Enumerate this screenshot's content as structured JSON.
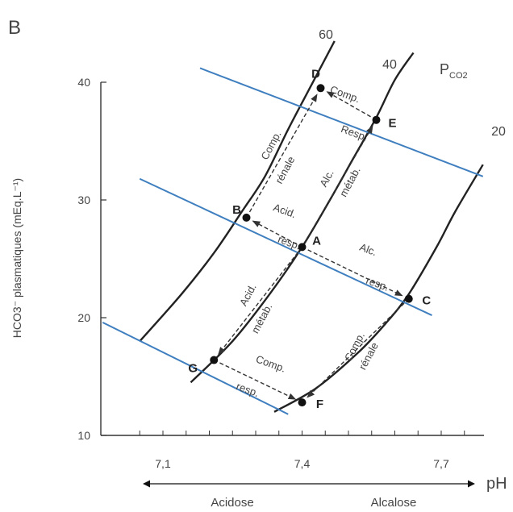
{
  "panel_label": "B",
  "chart_data": {
    "type": "diagram",
    "title": "",
    "ylabel": "HCO3⁻ plasmatiques (mEq.L⁻¹)",
    "xlabel": "pH",
    "x_ticks": [
      "7,1",
      "7,4",
      "7,7"
    ],
    "y_ticks": [
      "10",
      "20",
      "30",
      "40"
    ],
    "xlim": [
      7.0,
      7.8
    ],
    "ylim": [
      10,
      42
    ],
    "pco2_label": "P",
    "pco2_sub": "CO2",
    "isobars": [
      {
        "label": "60",
        "points": [
          [
            7.05,
            18
          ],
          [
            7.14,
            22
          ],
          [
            7.21,
            25.5
          ],
          [
            7.27,
            29
          ],
          [
            7.32,
            32
          ],
          [
            7.37,
            36
          ],
          [
            7.43,
            40.5
          ],
          [
            7.47,
            43.5
          ]
        ]
      },
      {
        "label": "40",
        "points": [
          [
            7.16,
            14.5
          ],
          [
            7.25,
            18
          ],
          [
            7.33,
            22
          ],
          [
            7.4,
            26
          ],
          [
            7.46,
            30
          ],
          [
            7.51,
            33.5
          ],
          [
            7.56,
            37
          ],
          [
            7.6,
            40.2
          ],
          [
            7.64,
            42.5
          ]
        ]
      },
      {
        "label": "20",
        "points": [
          [
            7.34,
            12
          ],
          [
            7.43,
            14
          ],
          [
            7.52,
            17
          ],
          [
            7.58,
            19.5
          ],
          [
            7.63,
            22
          ],
          [
            7.69,
            26
          ],
          [
            7.73,
            29
          ],
          [
            7.79,
            33
          ]
        ]
      }
    ],
    "compensation_lines": [
      {
        "points": [
          [
            7.18,
            41.2
          ],
          [
            7.79,
            32
          ]
        ]
      },
      {
        "points": [
          [
            7.05,
            31.8
          ],
          [
            7.68,
            20.2
          ]
        ]
      },
      {
        "points": [
          [
            6.97,
            19.6
          ],
          [
            7.37,
            11.8
          ]
        ]
      }
    ],
    "points": [
      {
        "name": "A",
        "x": 7.4,
        "y": 26
      },
      {
        "name": "B",
        "x": 7.28,
        "y": 28.5
      },
      {
        "name": "C",
        "x": 7.63,
        "y": 21.6
      },
      {
        "name": "D",
        "x": 7.44,
        "y": 39.5
      },
      {
        "name": "E",
        "x": 7.56,
        "y": 36.8
      },
      {
        "name": "F",
        "x": 7.4,
        "y": 12.8
      },
      {
        "name": "G",
        "x": 7.21,
        "y": 16.4
      }
    ],
    "arrows": [
      {
        "from": "A",
        "to": "B"
      },
      {
        "from": "A",
        "to": "C"
      },
      {
        "from": "A",
        "to": "E"
      },
      {
        "from": "A",
        "to": "G"
      },
      {
        "from": "B",
        "to": "D"
      },
      {
        "from": "E",
        "to": "D"
      },
      {
        "from": "G",
        "to": "F"
      },
      {
        "from": "C",
        "to": "F"
      }
    ],
    "annotations": [
      {
        "text": "Comp.",
        "x": 7.49,
        "y": 38.7,
        "angle": 20
      },
      {
        "text": "Resp.",
        "x": 7.51,
        "y": 35.4,
        "angle": 20
      },
      {
        "text": "Comp.",
        "x": 7.34,
        "y": 34.5,
        "angle": -62
      },
      {
        "text": "rénale",
        "x": 7.37,
        "y": 32.4,
        "angle": -62
      },
      {
        "text": "Alc.",
        "x": 7.46,
        "y": 31.7,
        "angle": -62
      },
      {
        "text": "métab.",
        "x": 7.51,
        "y": 31.4,
        "angle": -62
      },
      {
        "text": "Acid.",
        "x": 7.36,
        "y": 28.8,
        "angle": 20
      },
      {
        "text": "resp.",
        "x": 7.37,
        "y": 26.1,
        "angle": 20
      },
      {
        "text": "Alc.",
        "x": 7.54,
        "y": 25.5,
        "angle": 20
      },
      {
        "text": "resp.",
        "x": 7.56,
        "y": 22.6,
        "angle": 20
      },
      {
        "text": "Acid.",
        "x": 7.29,
        "y": 21.8,
        "angle": -62
      },
      {
        "text": "métab.",
        "x": 7.32,
        "y": 19.8,
        "angle": -62
      },
      {
        "text": "Comp.",
        "x": 7.52,
        "y": 17.4,
        "angle": -62
      },
      {
        "text": "rénale",
        "x": 7.55,
        "y": 16.6,
        "angle": -62
      },
      {
        "text": "Comp.",
        "x": 7.33,
        "y": 15.8,
        "angle": 20
      },
      {
        "text": "resp.",
        "x": 7.28,
        "y": 13.6,
        "angle": 20
      }
    ],
    "bottom_left_label": "Acidose",
    "bottom_right_label": "Alcalose"
  }
}
